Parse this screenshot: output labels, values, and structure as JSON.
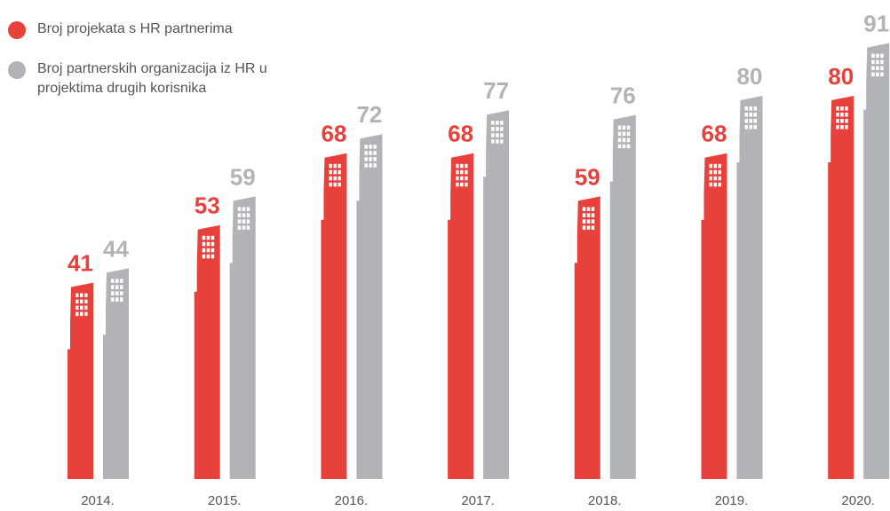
{
  "chart_data": {
    "type": "bar",
    "categories": [
      "2014.",
      "2015.",
      "2016.",
      "2017.",
      "2018.",
      "2019.",
      "2020."
    ],
    "series": [
      {
        "name": "Broj projekata s HR partnerima",
        "color": "#e8403a",
        "values": [
          41,
          53,
          68,
          68,
          59,
          68,
          80
        ]
      },
      {
        "name": "Broj partnerskih organizacija iz HR u projektima drugih korisnika",
        "color": "#b1b3b6",
        "values": [
          44,
          59,
          72,
          77,
          76,
          80,
          91
        ]
      }
    ]
  }
}
